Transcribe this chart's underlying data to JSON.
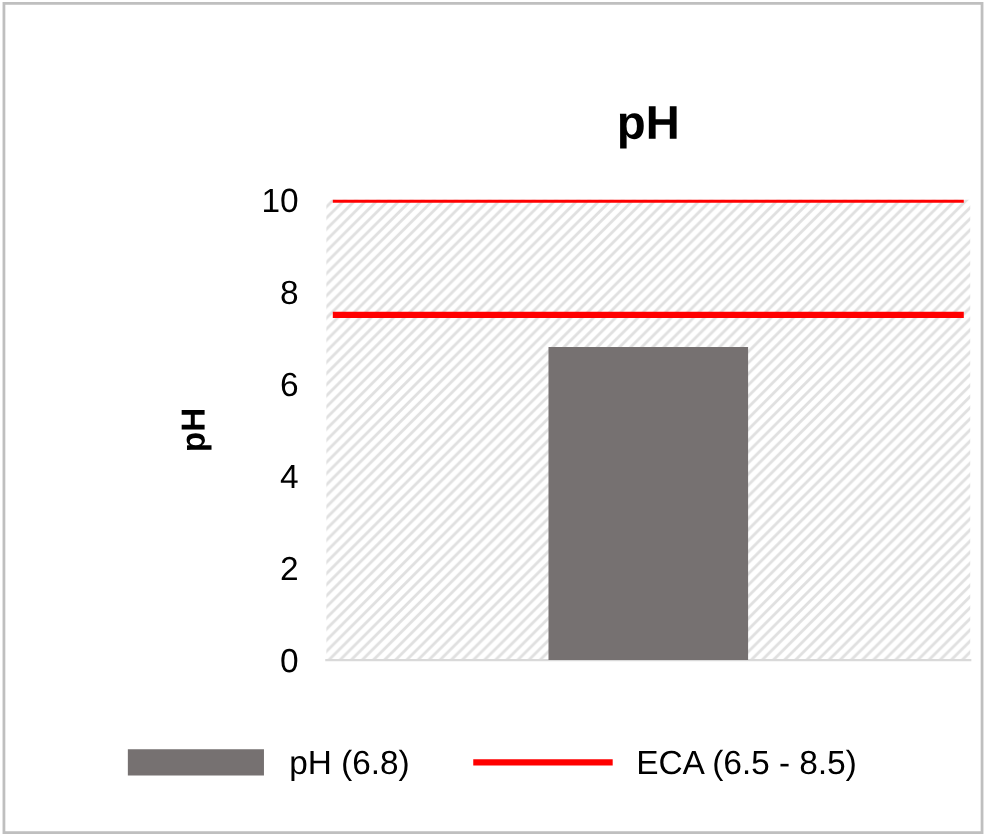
{
  "chart_data": {
    "type": "bar",
    "title": "pH",
    "ylabel": "pH",
    "categories": [
      null
    ],
    "series": [
      {
        "name": "pH (6.8)",
        "color": "#767171",
        "values": [
          6.8
        ]
      }
    ],
    "ylim": [
      0,
      10
    ],
    "yticks": [
      0,
      2,
      4,
      6,
      8,
      10
    ],
    "grid": false,
    "legend": "bottom",
    "ref_lines": [
      {
        "axis": "y",
        "value": 10,
        "label": "ECA (6.5 - 8.5)",
        "color": "#ff0000",
        "line_style": "solid"
      },
      {
        "axis": "y",
        "value": 7.5,
        "label": null,
        "color": "#ff0000",
        "line_style": "solid"
      }
    ]
  }
}
